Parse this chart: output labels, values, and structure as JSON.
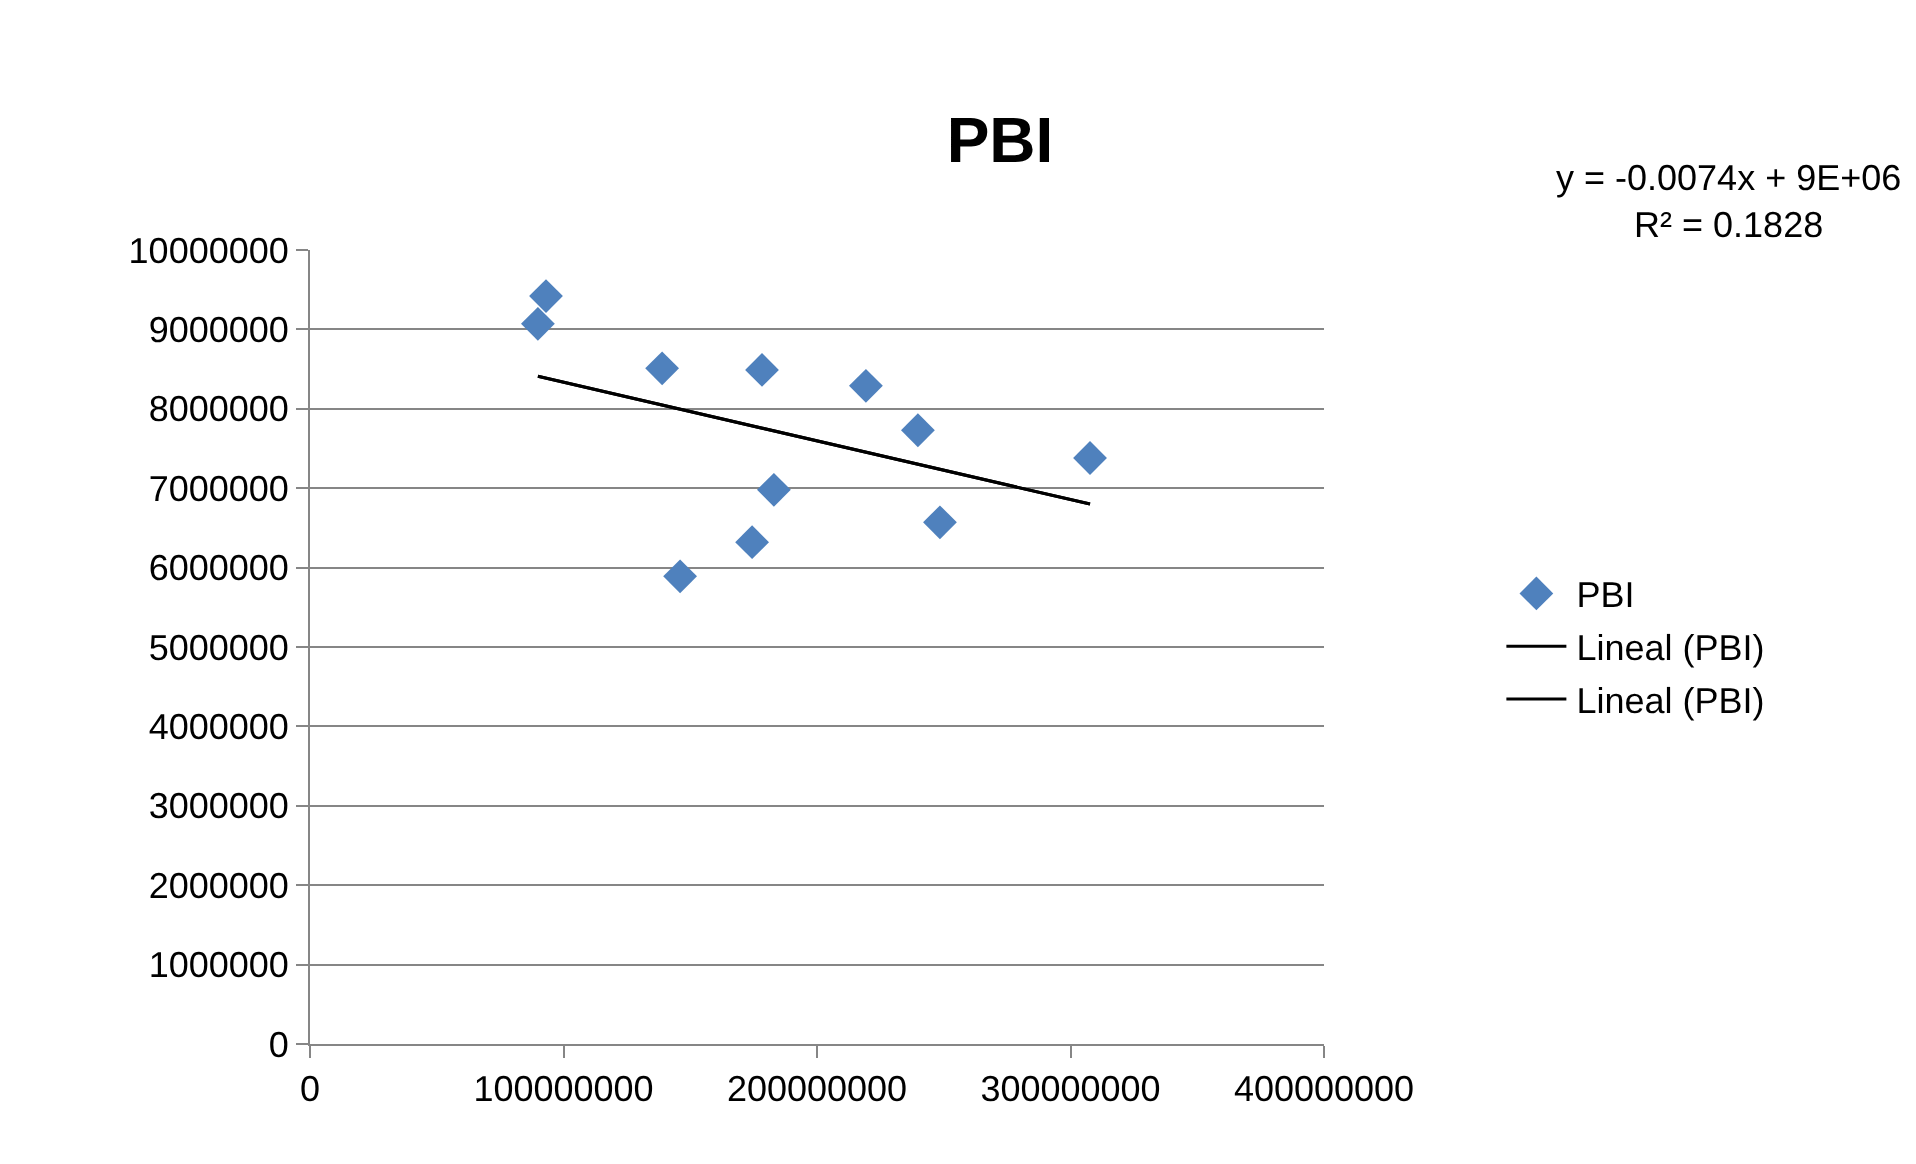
{
  "chart_data": {
    "type": "scatter",
    "title": "PBI",
    "annotations": [
      "y = -0.0074x + 9E+06\nR² = 0.1828"
    ],
    "series": [
      {
        "name": "PBI",
        "color": "#4f81bd",
        "marker": "diamond",
        "x": [
          89900000,
          93100000,
          138900000,
          178300000,
          219300000,
          239800000,
          307700000,
          183000000,
          174400000,
          146000000,
          248500000
        ],
        "values": [
          9070000,
          9420000,
          8510000,
          8490000,
          8290000,
          7730000,
          7380000,
          6980000,
          6320000,
          5890000,
          6570000
        ]
      },
      {
        "name": "Lineal (PBI)",
        "type": "line",
        "color": "#000000",
        "marker": "none",
        "x": [
          89900000,
          307700000
        ],
        "values": [
          8410000,
          6800000
        ]
      },
      {
        "name": "Lineal (PBI)",
        "type": "line",
        "color": "#000000",
        "marker": "none",
        "x": [
          89900000,
          307700000
        ],
        "values": [
          8410000,
          6800000
        ]
      }
    ],
    "xlim": [
      0,
      400000000
    ],
    "xticks": [
      0,
      100000000,
      200000000,
      300000000,
      400000000
    ],
    "ylim": [
      0,
      10000000
    ],
    "yticks": [
      0,
      1000000,
      2000000,
      3000000,
      4000000,
      5000000,
      6000000,
      7000000,
      8000000,
      9000000,
      10000000
    ],
    "grid": "y",
    "legend": "right",
    "line_style": "solid"
  }
}
